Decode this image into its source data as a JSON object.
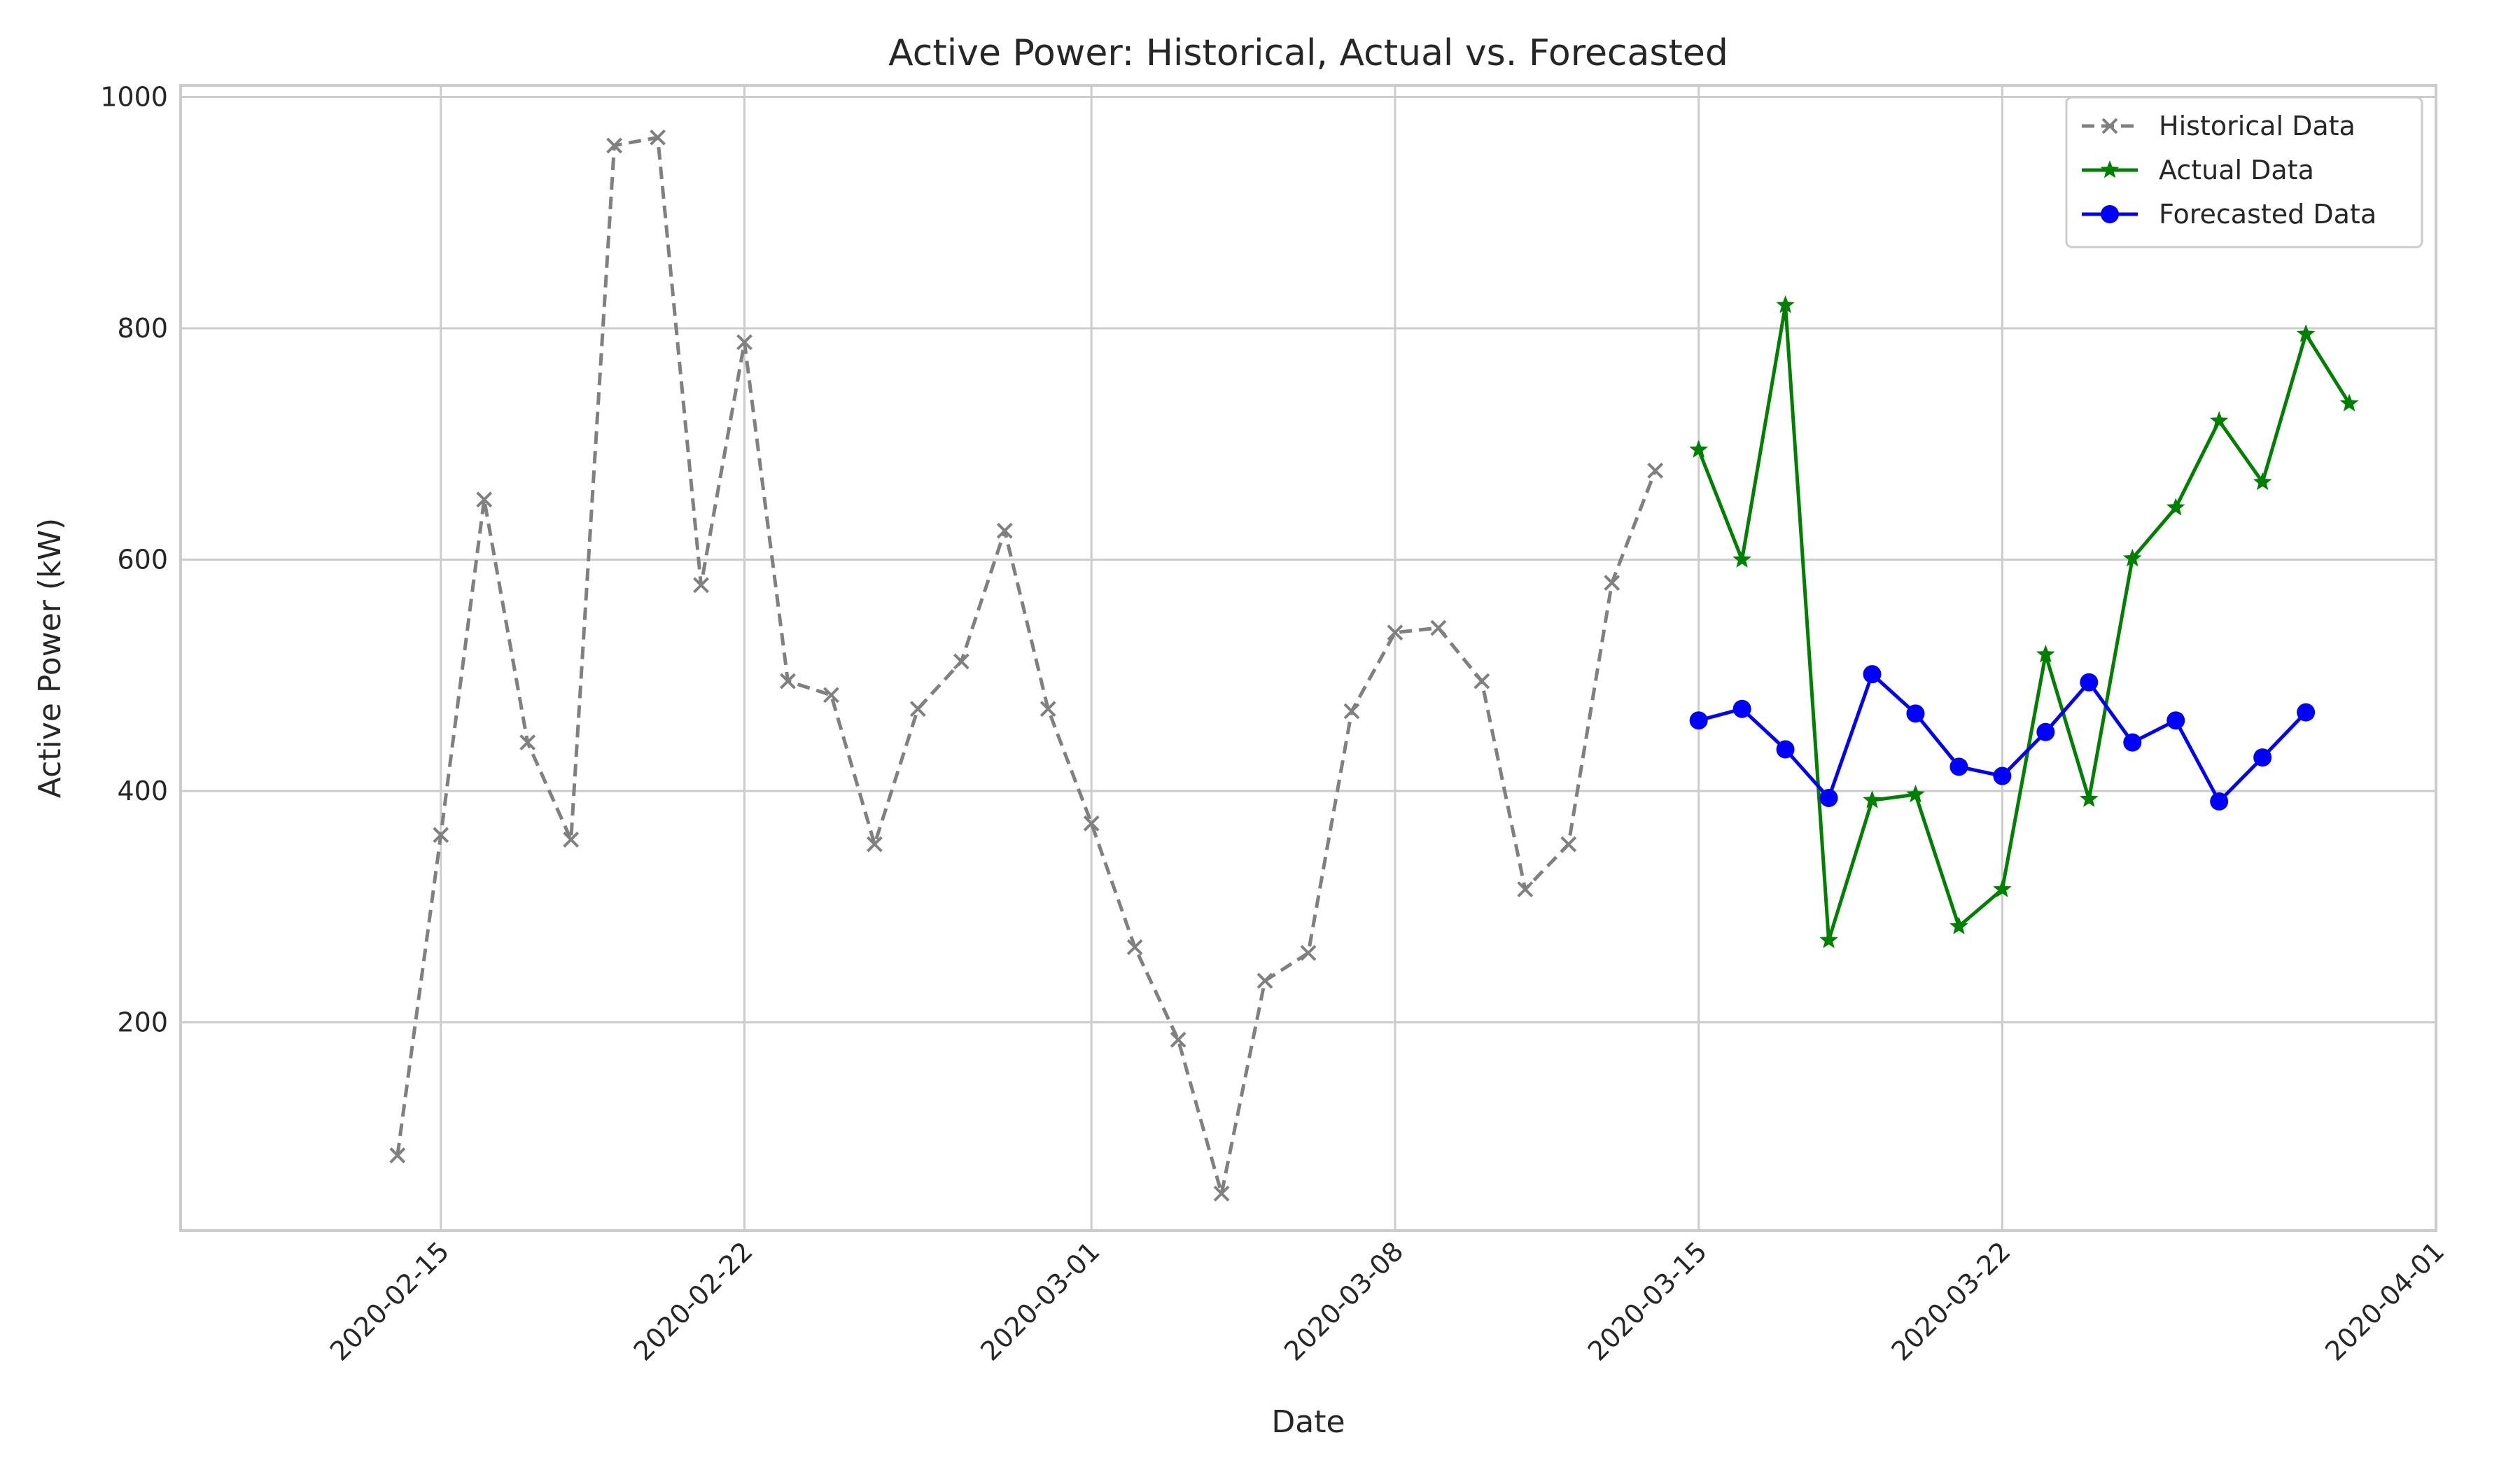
{
  "chart_data": {
    "type": "line",
    "title": "Active Power: Historical, Actual vs. Forecasted",
    "xlabel": "Date",
    "ylabel": "Active Power (kW)",
    "xlim": [
      "2020-02-09",
      "2020-04-01"
    ],
    "ylim": [
      20,
      1010
    ],
    "x_ticks": [
      "2020-02-15",
      "2020-02-22",
      "2020-03-01",
      "2020-03-08",
      "2020-03-15",
      "2020-03-22",
      "2020-04-01"
    ],
    "y_ticks": [
      200,
      400,
      600,
      800,
      1000
    ],
    "grid": true,
    "legend_position": "top-right",
    "series": [
      {
        "name": "Historical Data",
        "color": "#808080",
        "line_style": "dashed",
        "marker": "x",
        "start_date": "2020-02-14",
        "values": [
          85,
          362,
          652,
          442,
          358,
          958,
          965,
          578,
          788,
          495,
          483,
          354,
          471,
          512,
          625,
          471,
          372,
          265,
          185,
          52,
          236,
          260,
          469,
          537,
          541,
          495,
          315,
          354,
          580,
          677
        ]
      },
      {
        "name": "Actual Data",
        "color": "#008000",
        "line_style": "solid",
        "marker": "star",
        "start_date": "2020-03-15",
        "values": [
          695,
          600,
          820,
          271,
          392,
          397,
          283,
          315,
          518,
          393,
          601,
          645,
          720,
          667,
          795,
          735
        ]
      },
      {
        "name": "Forecasted Data",
        "color": "#0000ff",
        "line_style": "solid",
        "marker": "circle",
        "start_date": "2020-03-15",
        "values": [
          461,
          471,
          436,
          394,
          501,
          467,
          421,
          413,
          451,
          494,
          442,
          461,
          391,
          429,
          468
        ]
      }
    ]
  }
}
